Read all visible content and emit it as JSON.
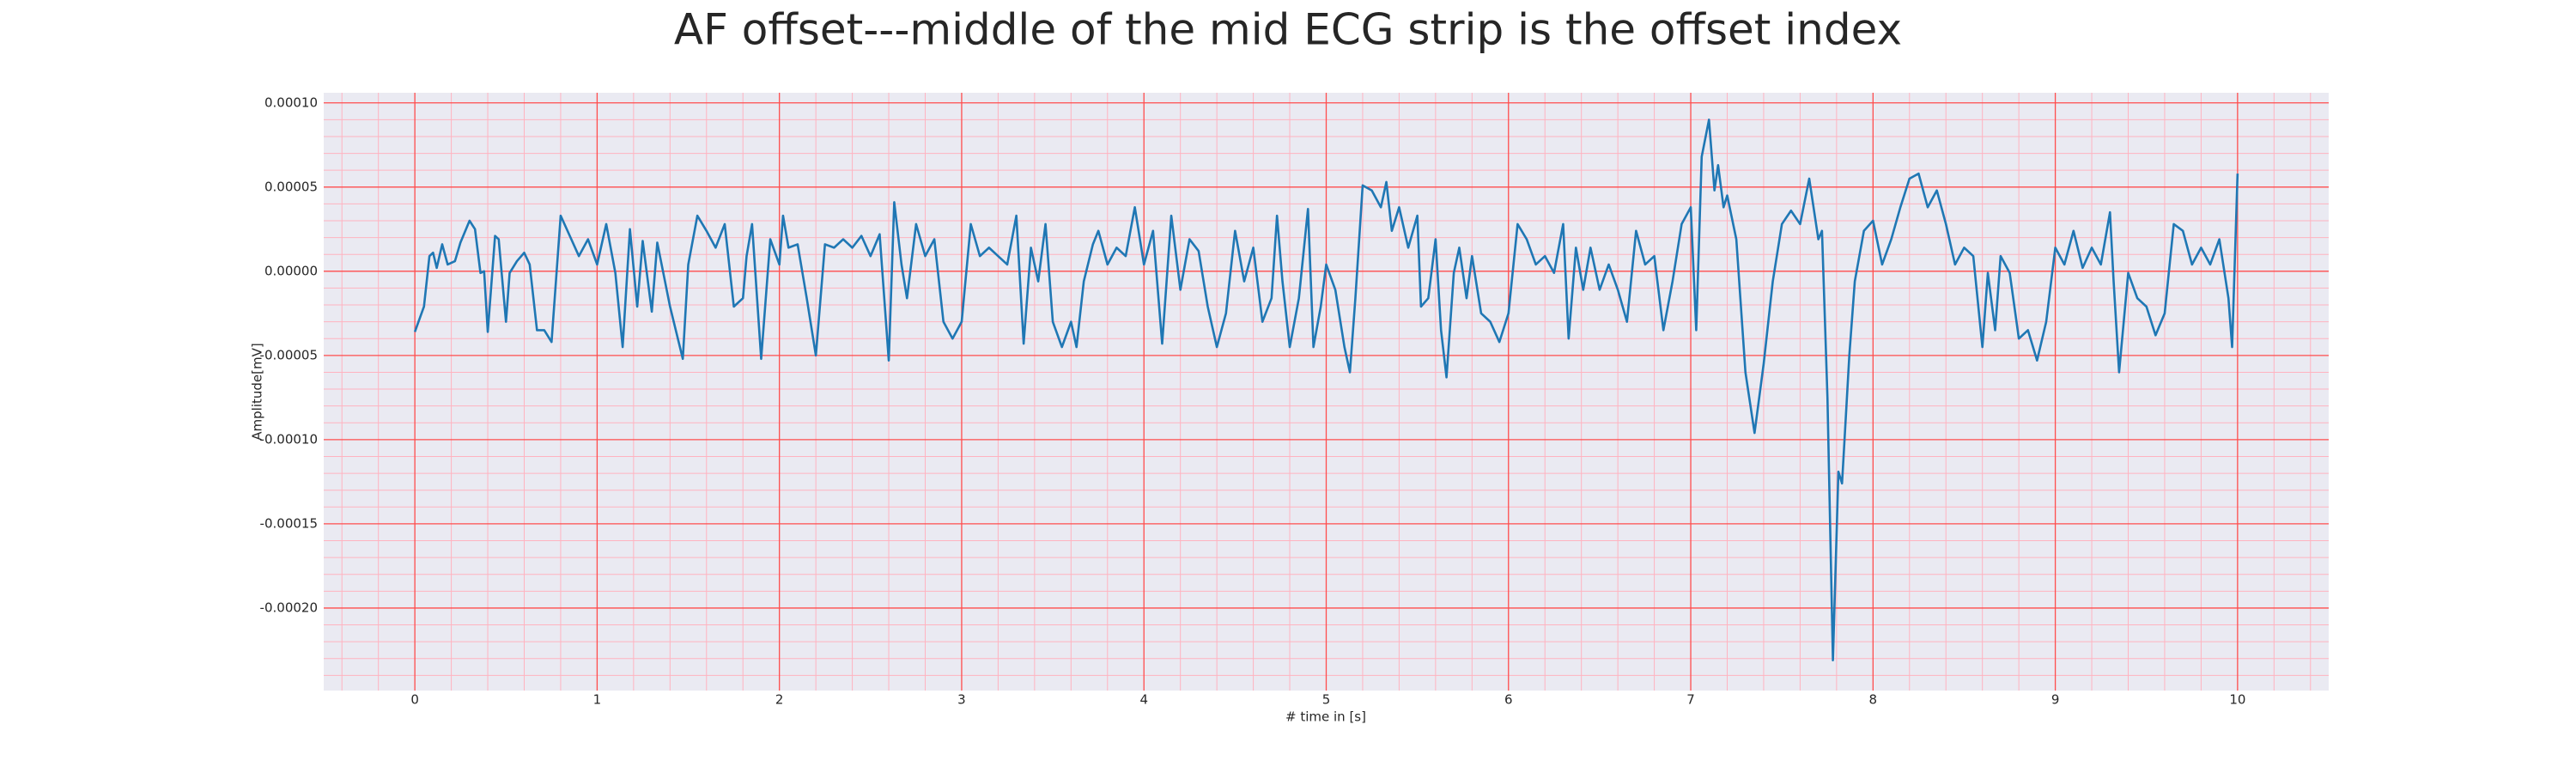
{
  "chart_data": {
    "type": "line",
    "title": "AF offset---middle of the mid ECG strip is the offset index",
    "x_label": "# time in [s]",
    "y_label": "Amplitude[mV]",
    "grid": true,
    "minor_grid": true,
    "xlim": [
      -0.5,
      10.5
    ],
    "xticks": [
      0,
      1,
      2,
      3,
      4,
      5,
      6,
      7,
      8,
      9,
      10
    ],
    "ylim": [
      -0.000249,
      0.000106
    ],
    "yticks": [
      {
        "value": -0.0002,
        "label": "-0.00020"
      },
      {
        "value": -0.00015,
        "label": "-0.00015"
      },
      {
        "value": -0.0001,
        "label": "-0.00010"
      },
      {
        "value": -5e-05,
        "label": "-0.00005"
      },
      {
        "value": 0,
        "label": "0.00000"
      },
      {
        "value": 5e-05,
        "label": "0.00005"
      },
      {
        "value": 0.0001,
        "label": "0.00010"
      }
    ],
    "x": [
      0,
      0.05,
      0.08,
      0.1,
      0.12,
      0.15,
      0.18,
      0.22,
      0.25,
      0.3,
      0.33,
      0.36,
      0.38,
      0.4,
      0.44,
      0.46,
      0.5,
      0.52,
      0.56,
      0.6,
      0.63,
      0.67,
      0.71,
      0.75,
      0.8,
      0.85,
      0.9,
      0.95,
      1.0,
      1.05,
      1.1,
      1.14,
      1.18,
      1.22,
      1.25,
      1.3,
      1.33,
      1.4,
      1.47,
      1.5,
      1.55,
      1.6,
      1.65,
      1.7,
      1.75,
      1.8,
      1.82,
      1.85,
      1.9,
      1.95,
      2.0,
      2.02,
      2.05,
      2.1,
      2.15,
      2.2,
      2.25,
      2.3,
      2.35,
      2.4,
      2.45,
      2.5,
      2.55,
      2.6,
      2.63,
      2.67,
      2.7,
      2.75,
      2.8,
      2.85,
      2.9,
      2.95,
      3.0,
      3.05,
      3.1,
      3.15,
      3.2,
      3.25,
      3.3,
      3.34,
      3.38,
      3.42,
      3.46,
      3.5,
      3.55,
      3.6,
      3.63,
      3.67,
      3.72,
      3.75,
      3.8,
      3.85,
      3.9,
      3.95,
      4.0,
      4.05,
      4.1,
      4.15,
      4.2,
      4.25,
      4.3,
      4.35,
      4.4,
      4.45,
      4.5,
      4.55,
      4.6,
      4.65,
      4.7,
      4.73,
      4.76,
      4.8,
      4.85,
      4.9,
      4.93,
      4.97,
      5.0,
      5.05,
      5.1,
      5.13,
      5.16,
      5.2,
      5.25,
      5.3,
      5.33,
      5.36,
      5.4,
      5.45,
      5.5,
      5.52,
      5.56,
      5.6,
      5.63,
      5.66,
      5.7,
      5.73,
      5.77,
      5.8,
      5.85,
      5.9,
      5.95,
      6.0,
      6.05,
      6.1,
      6.15,
      6.2,
      6.25,
      6.3,
      6.33,
      6.37,
      6.41,
      6.45,
      6.5,
      6.55,
      6.6,
      6.65,
      6.7,
      6.75,
      6.8,
      6.85,
      6.9,
      6.95,
      7.0,
      7.03,
      7.06,
      7.1,
      7.13,
      7.15,
      7.18,
      7.2,
      7.25,
      7.3,
      7.35,
      7.4,
      7.45,
      7.5,
      7.55,
      7.6,
      7.65,
      7.7,
      7.72,
      7.75,
      7.78,
      7.81,
      7.83,
      7.87,
      7.9,
      7.95,
      8.0,
      8.05,
      8.1,
      8.15,
      8.2,
      8.25,
      8.3,
      8.35,
      8.4,
      8.45,
      8.5,
      8.55,
      8.6,
      8.63,
      8.67,
      8.7,
      8.75,
      8.8,
      8.85,
      8.9,
      8.95,
      9.0,
      9.05,
      9.1,
      9.15,
      9.2,
      9.25,
      9.3,
      9.32,
      9.35,
      9.4,
      9.45,
      9.5,
      9.55,
      9.6,
      9.65,
      9.7,
      9.75,
      9.8,
      9.85,
      9.9,
      9.95,
      9.97,
      10.0
    ],
    "series": [
      {
        "name": "ECG",
        "color": "#1f77b4",
        "values": [
          -3.6e-05,
          -2.1e-05,
          9e-06,
          1.1e-05,
          2e-06,
          1.6e-05,
          4e-06,
          6e-06,
          1.7e-05,
          3e-05,
          2.5e-05,
          -1e-06,
          0,
          -3.6e-05,
          2.1e-05,
          1.9e-05,
          -3e-05,
          -1e-06,
          6e-06,
          1.1e-05,
          4e-06,
          -3.5e-05,
          -3.5e-05,
          -4.2e-05,
          3.3e-05,
          2.1e-05,
          9e-06,
          1.9e-05,
          4e-06,
          2.8e-05,
          -1e-06,
          -4.5e-05,
          2.5e-05,
          -2.1e-05,
          1.8e-05,
          -2.4e-05,
          1.7e-05,
          -2.1e-05,
          -5.2e-05,
          4e-06,
          3.3e-05,
          2.4e-05,
          1.4e-05,
          2.8e-05,
          -2.1e-05,
          -1.6e-05,
          9e-06,
          2.8e-05,
          -5.2e-05,
          1.9e-05,
          4e-06,
          3.3e-05,
          1.4e-05,
          1.6e-05,
          -1.6e-05,
          -5e-05,
          1.6e-05,
          1.4e-05,
          1.9e-05,
          1.4e-05,
          2.1e-05,
          9e-06,
          2.2e-05,
          -5.3e-05,
          4.1e-05,
          4e-06,
          -1.6e-05,
          2.8e-05,
          9e-06,
          1.9e-05,
          -3e-05,
          -4e-05,
          -3e-05,
          2.8e-05,
          9e-06,
          1.4e-05,
          9e-06,
          4e-06,
          3.3e-05,
          -4.3e-05,
          1.4e-05,
          -6e-06,
          2.8e-05,
          -3e-05,
          -4.5e-05,
          -3e-05,
          -4.5e-05,
          -6e-06,
          1.6e-05,
          2.4e-05,
          4e-06,
          1.4e-05,
          9e-06,
          3.8e-05,
          4e-06,
          2.4e-05,
          -4.3e-05,
          3.3e-05,
          -1.1e-05,
          1.9e-05,
          1.2e-05,
          -2.1e-05,
          -4.5e-05,
          -2.5e-05,
          2.4e-05,
          -6e-06,
          1.4e-05,
          -3e-05,
          -1.6e-05,
          3.3e-05,
          -6e-06,
          -4.5e-05,
          -1.6e-05,
          3.7e-05,
          -4.5e-05,
          -2.1e-05,
          4e-06,
          -1.1e-05,
          -4.5e-05,
          -6e-05,
          -1.6e-05,
          5.1e-05,
          4.8e-05,
          3.8e-05,
          5.3e-05,
          2.4e-05,
          3.8e-05,
          1.4e-05,
          3.3e-05,
          -2.1e-05,
          -1.6e-05,
          1.9e-05,
          -3.5e-05,
          -6.3e-05,
          -1e-06,
          1.4e-05,
          -1.6e-05,
          9e-06,
          -2.5e-05,
          -3e-05,
          -4.2e-05,
          -2.5e-05,
          2.8e-05,
          1.9e-05,
          4e-06,
          9e-06,
          -1e-06,
          2.8e-05,
          -4e-05,
          1.4e-05,
          -1.1e-05,
          1.4e-05,
          -1.1e-05,
          4e-06,
          -1.1e-05,
          -3e-05,
          2.4e-05,
          4e-06,
          9e-06,
          -3.5e-05,
          -6e-06,
          2.8e-05,
          3.8e-05,
          -3.5e-05,
          6.8e-05,
          9e-05,
          4.8e-05,
          6.3e-05,
          3.8e-05,
          4.5e-05,
          1.9e-05,
          -6e-05,
          -9.6e-05,
          -5.5e-05,
          -6e-06,
          2.8e-05,
          3.6e-05,
          2.8e-05,
          5.5e-05,
          1.9e-05,
          2.4e-05,
          -7.5e-05,
          -0.000231,
          -0.000119,
          -0.000126,
          -5e-05,
          -6e-06,
          2.4e-05,
          3e-05,
          4e-06,
          1.9e-05,
          3.8e-05,
          5.5e-05,
          5.8e-05,
          3.8e-05,
          4.8e-05,
          2.8e-05,
          4e-06,
          1.4e-05,
          9e-06,
          -4.5e-05,
          -1e-06,
          -3.5e-05,
          9e-06,
          -1e-06,
          -4e-05,
          -3.5e-05,
          -5.3e-05,
          -3e-05,
          1.4e-05,
          4e-06,
          2.4e-05,
          2e-06,
          1.4e-05,
          4e-06,
          3.5e-05,
          -6e-06,
          -6e-05,
          -1e-06,
          -1.6e-05,
          -2.1e-05,
          -3.8e-05,
          -2.5e-05,
          2.8e-05,
          2.4e-05,
          4e-06,
          1.4e-05,
          4e-06,
          1.9e-05,
          -1.6e-05,
          -4.5e-05,
          5.8e-05
        ]
      }
    ]
  }
}
